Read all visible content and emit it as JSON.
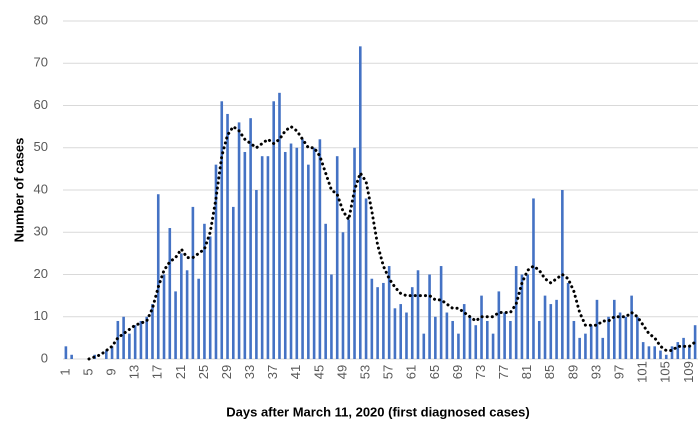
{
  "chart_data": {
    "type": "bar",
    "ylabel": "Number of cases",
    "xlabel": "Days after March 11, 2020 (first diagnosed cases)",
    "categories": [
      1,
      null,
      null,
      null,
      5,
      null,
      null,
      null,
      9,
      null,
      null,
      null,
      13,
      null,
      null,
      null,
      17,
      null,
      null,
      null,
      21,
      null,
      null,
      null,
      25,
      null,
      null,
      null,
      29,
      null,
      null,
      null,
      33,
      null,
      null,
      null,
      37,
      null,
      null,
      null,
      41,
      null,
      null,
      null,
      45,
      null,
      null,
      null,
      49,
      null,
      null,
      null,
      53,
      null,
      null,
      null,
      57,
      null,
      null,
      null,
      61,
      null,
      null,
      null,
      65,
      null,
      null,
      null,
      69,
      null,
      null,
      null,
      73,
      null,
      null,
      null,
      77,
      null,
      null,
      null,
      81,
      null,
      null,
      null,
      85,
      null,
      null,
      null,
      89,
      null,
      null,
      null,
      93,
      null,
      null,
      null,
      97,
      null,
      null,
      null,
      101,
      null,
      null,
      null,
      105,
      null,
      null,
      null,
      109,
      null
    ],
    "series": [
      {
        "color": "#4472c4",
        "values": [
          3,
          1,
          0,
          0,
          0,
          1,
          0,
          2,
          3,
          9,
          10,
          6,
          8,
          9,
          10,
          13,
          39,
          20,
          31,
          16,
          25,
          21,
          36,
          19,
          32,
          29,
          46,
          61,
          58,
          36,
          56,
          49,
          57,
          40,
          48,
          48,
          61,
          63,
          49,
          51,
          50,
          52,
          46,
          50,
          52,
          32,
          20,
          48,
          30,
          33,
          50,
          74,
          38,
          19,
          17,
          18,
          22,
          12,
          13,
          11,
          17,
          21,
          6,
          20,
          10,
          22,
          11,
          9,
          6,
          13,
          10,
          8,
          15,
          9,
          6,
          16,
          11,
          9,
          22,
          20,
          20,
          38,
          9,
          15,
          13,
          14,
          40,
          18,
          9,
          5,
          6,
          8,
          14,
          5,
          10,
          14,
          11,
          10,
          15,
          10,
          4,
          3,
          3,
          2,
          1,
          3,
          4,
          5,
          3,
          8
        ]
      },
      {
        "type": "line",
        "color": "#000000",
        "style": "dotted",
        "values": [
          null,
          null,
          null,
          null,
          0,
          0.5,
          1,
          2,
          3,
          5,
          6,
          7,
          8,
          8.5,
          9,
          12,
          17,
          21,
          23,
          24,
          26,
          24,
          24,
          25,
          26,
          30,
          38,
          48,
          53,
          55,
          54,
          52,
          51,
          50,
          51,
          52,
          51,
          52,
          54,
          55,
          54,
          52,
          50,
          50,
          48,
          44,
          40,
          39,
          35,
          33,
          40,
          44,
          42,
          35,
          27,
          22,
          19,
          17,
          15.5,
          15,
          15,
          15,
          15,
          15,
          14,
          14,
          13,
          12,
          12,
          11,
          10,
          9,
          10,
          10,
          10,
          11,
          11,
          11,
          13,
          18,
          21,
          22,
          21,
          19,
          18,
          19,
          20,
          19,
          16,
          11,
          8,
          8,
          8,
          9,
          9,
          10,
          10,
          10,
          11,
          10,
          8,
          6,
          5,
          3,
          2,
          2,
          3,
          3,
          3,
          4
        ]
      }
    ],
    "ylim": [
      0,
      80
    ],
    "yticks": [
      0,
      10,
      20,
      30,
      40,
      50,
      60,
      70,
      80
    ],
    "grid": true
  }
}
